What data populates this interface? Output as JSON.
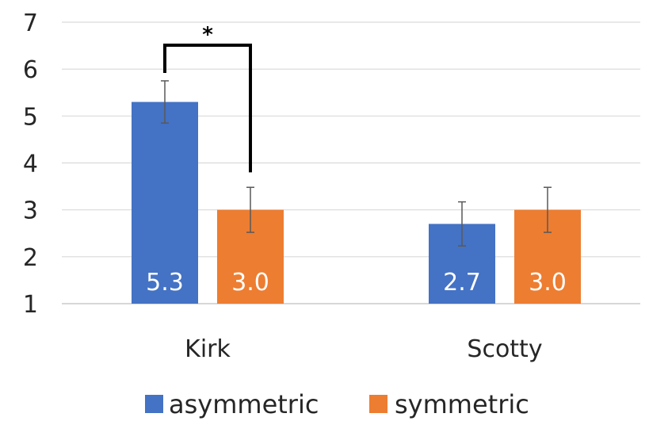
{
  "chart_data": {
    "type": "bar",
    "categories": [
      "Kirk",
      "Scotty"
    ],
    "series": [
      {
        "name": "asymmetric",
        "color": "#4472C4",
        "values": [
          5.3,
          2.7
        ],
        "error": [
          0.45,
          0.47
        ]
      },
      {
        "name": "symmetric",
        "color": "#ED7D31",
        "values": [
          3.0,
          3.0
        ],
        "error": [
          0.48,
          0.48
        ]
      }
    ],
    "data_labels": [
      [
        "5.3",
        "2.7"
      ],
      [
        "3.0",
        "3.0"
      ]
    ],
    "ylim": [
      1,
      7
    ],
    "yticks": [
      "1",
      "2",
      "3",
      "4",
      "5",
      "6",
      "7"
    ],
    "grid": true,
    "legend_position": "bottom",
    "annotation": {
      "text": "*",
      "between": [
        "Kirk asymmetric",
        "Kirk symmetric"
      ]
    },
    "title": "",
    "xlabel": "",
    "ylabel": ""
  }
}
